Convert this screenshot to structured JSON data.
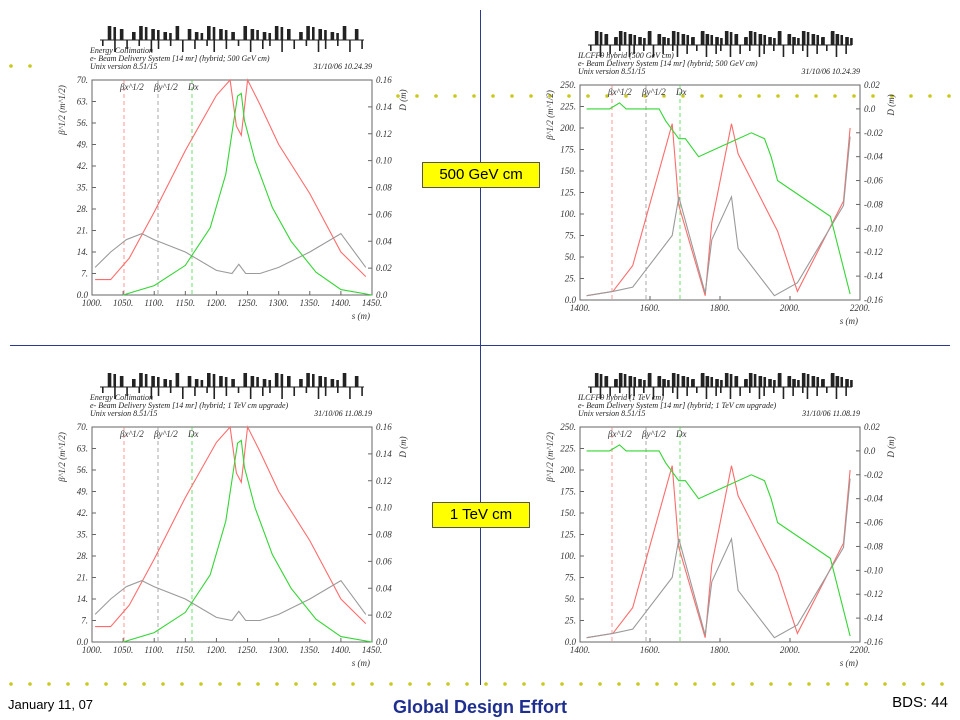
{
  "slide": {
    "footer_date": "January 11, 07",
    "footer_title": "Global Design Effort",
    "footer_page": "BDS: 44",
    "label_500": "500 GeV cm",
    "label_1tev": "1 TeV cm",
    "colors": {
      "accent_dots": "#c8c81e",
      "divider": "#2b3a8c",
      "footer_title": "#1f2f8f",
      "callout_bg": "#ffff00"
    }
  },
  "chart_data": [
    {
      "type": "line",
      "panel": "top-left",
      "header": [
        "Energy Collimation",
        "e- Beam Delivery System [14 mr] (hybrid; 500 GeV cm)",
        "Unix version 8.51/15"
      ],
      "timestamp": "31/10/06  10.24.39",
      "xlabel": "s (m)",
      "ylabel": "β^1/2 (m^1/2)",
      "y2label": "D (m)",
      "legend": [
        "βx^1/2",
        "βy^1/2",
        "Dx"
      ],
      "xlim": [
        1000,
        1450
      ],
      "ylim": [
        0,
        70
      ],
      "y2lim": [
        0,
        0.16
      ],
      "xticks": [
        "1000.",
        "1050.",
        "1100.",
        "1150.",
        "1200.",
        "1250.",
        "1300.",
        "1350.",
        "1400.",
        "1450."
      ],
      "yticks": [
        "0.0",
        "7.",
        "14.",
        "21.",
        "28.",
        "35.",
        "42.",
        "49.",
        "56.",
        "63.",
        "70."
      ],
      "y2ticks": [
        "0.0",
        "0.02",
        "0.04",
        "0.06",
        "0.08",
        "0.10",
        "0.12",
        "0.14",
        "0.16"
      ],
      "series": [
        {
          "color": "#ff6b6b",
          "axis": "y",
          "x": [
            1005,
            1030,
            1060,
            1100,
            1150,
            1200,
            1222,
            1232,
            1240,
            1250,
            1270,
            1300,
            1350,
            1400,
            1440
          ],
          "y": [
            5,
            5,
            12,
            27,
            47,
            65,
            70,
            55,
            52,
            70,
            62,
            49,
            33,
            14,
            6
          ]
        },
        {
          "color": "#9a9a9a",
          "axis": "y",
          "x": [
            1005,
            1030,
            1055,
            1080,
            1100,
            1150,
            1200,
            1225,
            1236,
            1247,
            1270,
            1300,
            1350,
            1400,
            1440
          ],
          "y": [
            9,
            14,
            18,
            20,
            18,
            14,
            8,
            7,
            10,
            7,
            7,
            9,
            14,
            20,
            9
          ]
        },
        {
          "color": "#33d633",
          "axis": "y2",
          "x": [
            1050,
            1100,
            1150,
            1190,
            1215,
            1228,
            1234,
            1240,
            1245,
            1262,
            1290,
            1320,
            1360,
            1400,
            1450
          ],
          "y": [
            0.0,
            0.007,
            0.022,
            0.05,
            0.09,
            0.13,
            0.148,
            0.15,
            0.13,
            0.1,
            0.065,
            0.04,
            0.017,
            0.004,
            0.0
          ]
        }
      ]
    },
    {
      "type": "line",
      "panel": "top-right",
      "header": [
        "ILCFF9 hybrid (500 GeV cm)",
        "e- Beam Delivery System [14 mr] (hybrid; 500 GeV cm)",
        "Unix version 8.51/15"
      ],
      "timestamp": "31/10/06  10.24.39",
      "xlabel": "s (m)",
      "ylabel": "β^1/2 (m^1/2)",
      "y2label": "D (m)",
      "legend": [
        "βx^1/2",
        "βy^1/2",
        "Dx"
      ],
      "xlim": [
        1400,
        2250
      ],
      "ylim": [
        0,
        250
      ],
      "y2lim": [
        -0.16,
        0.02
      ],
      "xticks": [
        "1400.",
        "1600.",
        "1800.",
        "2000.",
        "2200."
      ],
      "yticks": [
        "0.0",
        "25.",
        "50.",
        "75.",
        "100.",
        "125.",
        "150.",
        "175.",
        "200.",
        "225.",
        "250."
      ],
      "y2ticks": [
        "-0.16",
        "-0.14",
        "-0.12",
        "-0.10",
        "-0.08",
        "-0.06",
        "-0.04",
        "-0.02",
        "0.0",
        "0.02"
      ],
      "series": [
        {
          "color": "#ff6b6b",
          "axis": "y",
          "x": [
            1420,
            1500,
            1560,
            1680,
            1700,
            1780,
            1800,
            1860,
            1880,
            2000,
            2060,
            2200,
            2220
          ],
          "y": [
            5,
            10,
            40,
            205,
            110,
            5,
            90,
            205,
            170,
            80,
            10,
            115,
            200
          ]
        },
        {
          "color": "#9a9a9a",
          "axis": "y",
          "x": [
            1420,
            1500,
            1560,
            1680,
            1700,
            1780,
            1800,
            1860,
            1880,
            1990,
            2060,
            2200,
            2220
          ],
          "y": [
            5,
            10,
            15,
            75,
            120,
            8,
            70,
            120,
            60,
            5,
            20,
            110,
            190
          ]
        },
        {
          "color": "#33d633",
          "axis": "y2",
          "x": [
            1420,
            1490,
            1520,
            1540,
            1640,
            1660,
            1700,
            1720,
            1760,
            1840,
            1920,
            1960,
            1980,
            2000,
            2160,
            2220
          ],
          "y": [
            0.0,
            0.0,
            0.005,
            0.0,
            0.0,
            -0.01,
            -0.025,
            -0.025,
            -0.04,
            -0.03,
            -0.02,
            -0.025,
            -0.04,
            -0.06,
            -0.09,
            -0.155
          ]
        }
      ]
    },
    {
      "type": "line",
      "panel": "bottom-left",
      "header": [
        "Energy Collimation",
        "e- Beam Delivery System [14 mr] (hybrid; 1 TeV cm upgrade)",
        "Unix version 8.51/15"
      ],
      "timestamp": "31/10/06  11.08.19",
      "xlabel": "s (m)",
      "ylabel": "β^1/2 (m^1/2)",
      "y2label": "D (m)",
      "legend": [
        "βx^1/2",
        "βy^1/2",
        "Dx"
      ],
      "xlim": [
        1000,
        1450
      ],
      "ylim": [
        0,
        70
      ],
      "y2lim": [
        0,
        0.16
      ],
      "xticks": [
        "1000.",
        "1050.",
        "1100.",
        "1150.",
        "1200.",
        "1250.",
        "1300.",
        "1350.",
        "1400.",
        "1450."
      ],
      "yticks": [
        "0.0",
        "7.",
        "14.",
        "21.",
        "28.",
        "35.",
        "42.",
        "49.",
        "56.",
        "63.",
        "70."
      ],
      "y2ticks": [
        "0.0",
        "0.02",
        "0.04",
        "0.06",
        "0.08",
        "0.10",
        "0.12",
        "0.14",
        "0.16"
      ],
      "series": [
        {
          "color": "#ff6b6b",
          "axis": "y",
          "x": [
            1005,
            1030,
            1060,
            1100,
            1150,
            1200,
            1222,
            1232,
            1240,
            1250,
            1270,
            1300,
            1350,
            1400,
            1440
          ],
          "y": [
            5,
            5,
            12,
            27,
            47,
            65,
            70,
            55,
            52,
            70,
            62,
            49,
            33,
            14,
            6
          ]
        },
        {
          "color": "#9a9a9a",
          "axis": "y",
          "x": [
            1005,
            1030,
            1055,
            1080,
            1100,
            1150,
            1200,
            1225,
            1236,
            1247,
            1270,
            1300,
            1350,
            1400,
            1440
          ],
          "y": [
            9,
            14,
            18,
            20,
            18,
            14,
            8,
            7,
            10,
            7,
            7,
            9,
            14,
            20,
            9
          ]
        },
        {
          "color": "#33d633",
          "axis": "y2",
          "x": [
            1050,
            1100,
            1150,
            1190,
            1215,
            1228,
            1234,
            1240,
            1245,
            1262,
            1290,
            1320,
            1360,
            1400,
            1450
          ],
          "y": [
            0.0,
            0.007,
            0.022,
            0.05,
            0.09,
            0.13,
            0.148,
            0.15,
            0.13,
            0.1,
            0.065,
            0.04,
            0.017,
            0.004,
            0.0
          ]
        }
      ]
    },
    {
      "type": "line",
      "panel": "bottom-right",
      "header": [
        "ILCFF9 hybrid (1 TeV cm)",
        "e- Beam Delivery System [14 mr] (hybrid; 1 TeV cm upgrade)",
        "Unix version 8.51/15"
      ],
      "timestamp": "31/10/06  11.08.19",
      "xlabel": "s (m)",
      "ylabel": "β^1/2 (m^1/2)",
      "y2label": "D (m)",
      "legend": [
        "βx^1/2",
        "βy^1/2",
        "Dx"
      ],
      "xlim": [
        1400,
        2250
      ],
      "ylim": [
        0,
        250
      ],
      "y2lim": [
        -0.16,
        0.02
      ],
      "xticks": [
        "1400.",
        "1600.",
        "1800.",
        "2000.",
        "2200."
      ],
      "yticks": [
        "0.0",
        "25.",
        "50.",
        "75.",
        "100.",
        "125.",
        "150.",
        "175.",
        "200.",
        "225.",
        "250."
      ],
      "y2ticks": [
        "-0.16",
        "-0.14",
        "-0.12",
        "-0.10",
        "-0.08",
        "-0.06",
        "-0.04",
        "-0.02",
        "0.0",
        "0.02"
      ],
      "series": [
        {
          "color": "#ff6b6b",
          "axis": "y",
          "x": [
            1420,
            1500,
            1560,
            1680,
            1700,
            1780,
            1800,
            1860,
            1880,
            2000,
            2060,
            2200,
            2220
          ],
          "y": [
            5,
            10,
            40,
            205,
            110,
            5,
            90,
            205,
            170,
            80,
            10,
            115,
            200
          ]
        },
        {
          "color": "#9a9a9a",
          "axis": "y",
          "x": [
            1420,
            1500,
            1560,
            1680,
            1700,
            1780,
            1800,
            1860,
            1880,
            1990,
            2060,
            2200,
            2220
          ],
          "y": [
            5,
            10,
            15,
            75,
            120,
            8,
            70,
            120,
            60,
            5,
            20,
            110,
            190
          ]
        },
        {
          "color": "#33d633",
          "axis": "y2",
          "x": [
            1420,
            1490,
            1520,
            1540,
            1640,
            1660,
            1700,
            1720,
            1760,
            1840,
            1920,
            1960,
            1980,
            2000,
            2160,
            2220
          ],
          "y": [
            0.0,
            0.0,
            0.005,
            0.0,
            0.0,
            -0.01,
            -0.025,
            -0.025,
            -0.04,
            -0.03,
            -0.02,
            -0.025,
            -0.04,
            -0.06,
            -0.09,
            -0.155
          ]
        }
      ]
    }
  ]
}
